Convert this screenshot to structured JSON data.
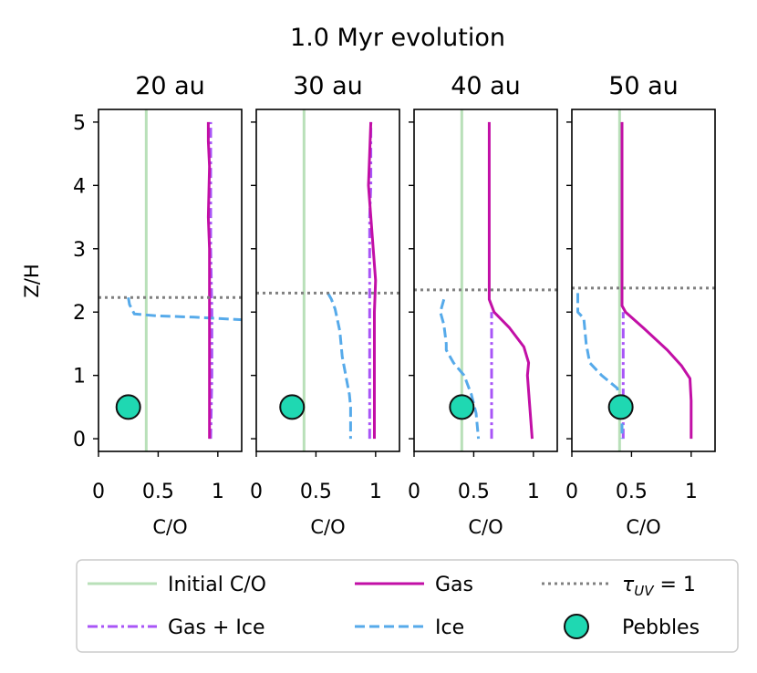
{
  "chart_data": {
    "type": "line",
    "title": "1.0 Myr evolution",
    "xlabel": "C/O",
    "ylabel": "Z/H",
    "xlim": [
      0,
      1.2
    ],
    "ylim": [
      -0.2,
      5.2
    ],
    "xticks": [
      {
        "value": 0,
        "label": "0"
      },
      {
        "value": 0.5,
        "label": "0.5"
      },
      {
        "value": 1,
        "label": "1"
      }
    ],
    "yticks": [
      {
        "value": 0,
        "label": "0"
      },
      {
        "value": 1,
        "label": "1"
      },
      {
        "value": 2,
        "label": "2"
      },
      {
        "value": 3,
        "label": "3"
      },
      {
        "value": 4,
        "label": "4"
      },
      {
        "value": 5,
        "label": "5"
      }
    ],
    "colors": {
      "initial": "#b9e0b9",
      "gas": "#c20fa6",
      "gas_ice": "#a855f7",
      "ice": "#56aaea",
      "tau": "#808080",
      "pebbles": "#1fd8b2"
    },
    "legend": {
      "position": "bottom",
      "entries": [
        {
          "key": "initial",
          "label": "Initial C/O"
        },
        {
          "key": "gas",
          "label": "Gas"
        },
        {
          "key": "tau",
          "label": "τ_UV = 1"
        },
        {
          "key": "gas_ice",
          "label": "Gas + Ice"
        },
        {
          "key": "ice",
          "label": "Ice"
        },
        {
          "key": "pebbles",
          "label": "Pebbles"
        }
      ]
    },
    "panels": [
      {
        "title": "20 au",
        "initial_co": 0.4,
        "tau_uv_z": 2.23,
        "pebbles": {
          "co": 0.25,
          "z": 0.5
        },
        "series": [
          {
            "name": "Gas + Ice",
            "key": "gas_ice",
            "points": [
              [
                0.94,
                0
              ],
              [
                0.95,
                1
              ],
              [
                0.95,
                2
              ],
              [
                0.94,
                3
              ],
              [
                0.94,
                4
              ],
              [
                0.94,
                5
              ]
            ]
          },
          {
            "name": "Ice",
            "key": "ice",
            "points": [
              [
                0.25,
                2.23
              ],
              [
                0.26,
                2.12
              ],
              [
                0.3,
                1.97
              ],
              [
                0.5,
                1.94
              ],
              [
                0.8,
                1.92
              ],
              [
                1.0,
                1.9
              ],
              [
                1.2,
                1.88
              ]
            ]
          },
          {
            "name": "Gas",
            "key": "gas",
            "points": [
              [
                0.93,
                0
              ],
              [
                0.93,
                1
              ],
              [
                0.93,
                2
              ],
              [
                0.93,
                3
              ],
              [
                0.92,
                3.5
              ],
              [
                0.93,
                4.3
              ],
              [
                0.92,
                4.7
              ],
              [
                0.92,
                5
              ]
            ]
          }
        ]
      },
      {
        "title": "30 au",
        "initial_co": 0.4,
        "tau_uv_z": 2.3,
        "pebbles": {
          "co": 0.3,
          "z": 0.5
        },
        "series": [
          {
            "name": "Gas + Ice",
            "key": "gas_ice",
            "points": [
              [
                0.95,
                0
              ],
              [
                0.95,
                1
              ],
              [
                0.95,
                2
              ],
              [
                0.95,
                3
              ],
              [
                0.95,
                3.5
              ],
              [
                0.96,
                4
              ],
              [
                0.96,
                5
              ]
            ]
          },
          {
            "name": "Ice",
            "key": "ice",
            "points": [
              [
                0.6,
                2.3
              ],
              [
                0.63,
                2.2
              ],
              [
                0.66,
                2.05
              ],
              [
                0.7,
                1.7
              ],
              [
                0.71,
                1.5
              ],
              [
                0.72,
                1.3
              ],
              [
                0.74,
                1.1
              ],
              [
                0.76,
                0.9
              ],
              [
                0.78,
                0.7
              ],
              [
                0.79,
                0.5
              ],
              [
                0.79,
                0.2
              ],
              [
                0.79,
                0
              ]
            ]
          },
          {
            "name": "Gas",
            "key": "gas",
            "points": [
              [
                0.99,
                0
              ],
              [
                0.99,
                1
              ],
              [
                0.99,
                2
              ],
              [
                1.0,
                2.5
              ],
              [
                0.98,
                3.0
              ],
              [
                0.96,
                3.5
              ],
              [
                0.94,
                4.0
              ],
              [
                0.95,
                4.5
              ],
              [
                0.96,
                5
              ]
            ]
          }
        ]
      },
      {
        "title": "40 au",
        "initial_co": 0.4,
        "tau_uv_z": 2.35,
        "pebbles": {
          "co": 0.4,
          "z": 0.5
        },
        "series": [
          {
            "name": "Gas + Ice",
            "key": "gas_ice",
            "points": [
              [
                0.65,
                0
              ],
              [
                0.65,
                1
              ],
              [
                0.65,
                2
              ]
            ]
          },
          {
            "name": "Ice",
            "key": "ice",
            "points": [
              [
                0.25,
                2.2
              ],
              [
                0.22,
                2.0
              ],
              [
                0.25,
                1.8
              ],
              [
                0.27,
                1.5
              ],
              [
                0.27,
                1.4
              ],
              [
                0.33,
                1.2
              ],
              [
                0.42,
                1.0
              ],
              [
                0.48,
                0.7
              ],
              [
                0.52,
                0.4
              ],
              [
                0.53,
                0.2
              ],
              [
                0.54,
                0
              ]
            ]
          },
          {
            "name": "Gas",
            "key": "gas",
            "points": [
              [
                0.63,
                5
              ],
              [
                0.63,
                3
              ],
              [
                0.63,
                2.2
              ],
              [
                0.67,
                2.0
              ],
              [
                0.8,
                1.75
              ],
              [
                0.92,
                1.45
              ],
              [
                0.96,
                1.2
              ],
              [
                0.95,
                1.0
              ],
              [
                0.97,
                0.5
              ],
              [
                0.99,
                0
              ]
            ]
          }
        ]
      },
      {
        "title": "50 au",
        "initial_co": 0.4,
        "tau_uv_z": 2.38,
        "pebbles": {
          "co": 0.41,
          "z": 0.5
        },
        "series": [
          {
            "name": "Gas + Ice",
            "key": "gas_ice",
            "points": [
              [
                0.43,
                0
              ],
              [
                0.43,
                1
              ],
              [
                0.43,
                2
              ]
            ]
          },
          {
            "name": "Ice",
            "key": "ice",
            "points": [
              [
                0.05,
                2.3
              ],
              [
                0.05,
                2.0
              ],
              [
                0.1,
                1.9
              ],
              [
                0.12,
                1.5
              ],
              [
                0.15,
                1.2
              ],
              [
                0.25,
                1.0
              ],
              [
                0.38,
                0.8
              ],
              [
                0.42,
                0.5
              ],
              [
                0.42,
                0.2
              ],
              [
                0.42,
                0
              ]
            ]
          },
          {
            "name": "Gas",
            "key": "gas",
            "points": [
              [
                0.42,
                5
              ],
              [
                0.42,
                3
              ],
              [
                0.42,
                2.1
              ],
              [
                0.45,
                2.0
              ],
              [
                0.6,
                1.75
              ],
              [
                0.8,
                1.4
              ],
              [
                0.92,
                1.15
              ],
              [
                0.99,
                0.95
              ],
              [
                1.0,
                0.6
              ],
              [
                1.0,
                0
              ]
            ]
          }
        ]
      }
    ]
  }
}
